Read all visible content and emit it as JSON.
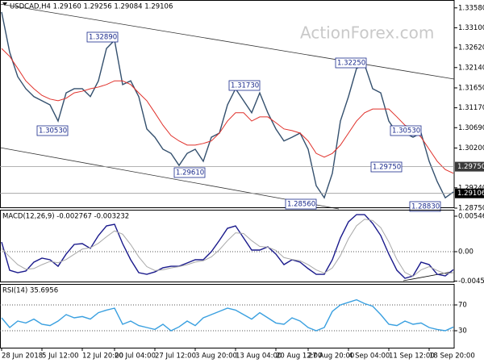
{
  "chart_data": [
    {
      "type": "line",
      "title": "USDCAD,H4 1.29160 1.29256 1.29084 1.29106",
      "watermark": "ActionForex.com",
      "series": [
        {
          "color": "#34506e",
          "values": [
            1.3348,
            1.3251,
            1.3192,
            1.3163,
            1.3144,
            1.3134,
            1.3124,
            1.3085,
            1.3153,
            1.3163,
            1.3163,
            1.3144,
            1.3182,
            1.326,
            1.328,
            1.3173,
            1.3182,
            1.3144,
            1.3066,
            1.3046,
            1.3017,
            1.3007,
            1.2978,
            1.3007,
            1.3017,
            1.2988,
            1.3046,
            1.3056,
            1.3124,
            1.3163,
            1.3134,
            1.3105,
            1.3153,
            1.3105,
            1.3066,
            1.3037,
            1.3046,
            1.3056,
            1.3017,
            1.2929,
            1.29,
            1.2959,
            1.3085,
            1.3144,
            1.3212,
            1.3221,
            1.3163,
            1.3153,
            1.3085,
            1.3056,
            1.3056,
            1.3046,
            1.3056,
            1.2988,
            1.2939,
            1.29,
            1.2914
          ]
        },
        {
          "color": "#e0302a",
          "values": [
            1.326,
            1.3241,
            1.3212,
            1.3182,
            1.3163,
            1.3147,
            1.3138,
            1.3134,
            1.314,
            1.3153,
            1.3157,
            1.3163,
            1.3167,
            1.3173,
            1.3182,
            1.3182,
            1.3173,
            1.3153,
            1.3134,
            1.3105,
            1.3075,
            1.305,
            1.3037,
            1.3027,
            1.3027,
            1.3031,
            1.3037,
            1.3056,
            1.3085,
            1.3105,
            1.3105,
            1.3085,
            1.3095,
            1.3095,
            1.3081,
            1.3066,
            1.3062,
            1.3056,
            1.3037,
            1.3007,
            1.2998,
            1.3007,
            1.3027,
            1.3056,
            1.3085,
            1.3105,
            1.3114,
            1.3114,
            1.3114,
            1.3095,
            1.3075,
            1.3066,
            1.3046,
            1.3017,
            1.2988,
            1.2968,
            1.2959
          ]
        }
      ],
      "ylim": [
        1.2875,
        1.3377
      ],
      "yticks": [
        {
          "value": 1.3358,
          "label": "1.33580"
        },
        {
          "value": 1.331,
          "label": "1.33100"
        },
        {
          "value": 1.3262,
          "label": "1.32620"
        },
        {
          "value": 1.3214,
          "label": "1.32140"
        },
        {
          "value": 1.3165,
          "label": "1.31650"
        },
        {
          "value": 1.3117,
          "label": "1.31170"
        },
        {
          "value": 1.3069,
          "label": "1.30690"
        },
        {
          "value": 1.302,
          "label": "1.30200"
        },
        {
          "value": 1.2924,
          "label": "1.29240"
        },
        {
          "value": 1.2875,
          "label": "1.28750"
        }
      ],
      "price_lines": [
        {
          "value": 1.2975,
          "label": "1.29750",
          "color": "#3a3a3a"
        },
        {
          "value": 1.29106,
          "label": "1.29106",
          "color": "#000000"
        }
      ],
      "annotations": [
        "1.32890",
        "1.31730",
        "1.30530",
        "1.29610",
        "1.28560",
        "1.32250",
        "1.30530",
        "1.29750",
        "1.28830"
      ]
    },
    {
      "type": "line",
      "title": "MACD(12,26,9) -0.002767 -0.003232",
      "series": [
        {
          "color": "#1a1a8c",
          "values": [
            0.00149,
            -0.00286,
            -0.00323,
            -0.00298,
            -0.00161,
            -0.00099,
            -0.00124,
            -0.00224,
            -0.00037,
            0.00112,
            0.00124,
            0.0005,
            0.00248,
            0.00397,
            0.00422,
            0.00124,
            -0.00124,
            -0.00323,
            -0.00348,
            -0.00311,
            -0.00248,
            -0.00224,
            -0.00224,
            -0.00174,
            -0.00124,
            -0.00124,
            0,
            0.00174,
            0.0036,
            0.00397,
            0.00211,
            0.00025,
            0.00025,
            0.00075,
            -0.00037,
            -0.00199,
            -0.00124,
            -0.00161,
            -0.00261,
            -0.00348,
            -0.00348,
            -0.00124,
            0.00211,
            0.0046,
            0.00571,
            0.00571,
            0.00435,
            0.00248,
            -0.00037,
            -0.00286,
            -0.0041,
            -0.00373,
            -0.00161,
            -0.00199,
            -0.00348,
            -0.00373,
            -0.00277
          ]
        },
        {
          "color": "#a8a8a8",
          "values": [
            0.0005,
            -0.0008,
            -0.002,
            -0.0027,
            -0.0026,
            -0.002,
            -0.0015,
            -0.0017,
            -0.0012,
            -0.0004,
            0.0004,
            0.0006,
            0.0013,
            0.0023,
            0.0032,
            0.0027,
            0.0011,
            -0.0008,
            -0.0023,
            -0.0029,
            -0.0028,
            -0.0025,
            -0.0023,
            -0.002,
            -0.0016,
            -0.0014,
            -0.0008,
            0.0003,
            0.0017,
            0.0029,
            0.0028,
            0.0017,
            0.0008,
            0.0007,
            0.0002,
            -0.0009,
            -0.0012,
            -0.0014,
            -0.002,
            -0.0028,
            -0.0033,
            -0.0025,
            -0.0006,
            0.002,
            0.004,
            0.005,
            0.0048,
            0.0037,
            0.0015,
            -0.0012,
            -0.0032,
            -0.0038,
            -0.0028,
            -0.0023,
            -0.0029,
            -0.0034,
            -0.00323
          ]
        }
      ],
      "ylim": [
        -0.00472,
        0.00646
      ],
      "yticks": [
        0.005465,
        {
          "value": 0,
          "label": "0.00"
        },
        -0.004527
      ],
      "levels": [
        0
      ]
    },
    {
      "type": "line",
      "title": "RSI(14) 35.6956",
      "categories": [
        "28 Jun 2018",
        null,
        null,
        null,
        null,
        "5 Jul 12:00",
        null,
        null,
        null,
        null,
        "12 Jul 20:00",
        null,
        null,
        null,
        "20 Jul 04:00",
        null,
        null,
        null,
        null,
        "27 Jul 12:00",
        null,
        null,
        null,
        null,
        "3 Aug 20:00",
        null,
        null,
        null,
        null,
        "13 Aug 04:00",
        null,
        null,
        null,
        null,
        "20 Aug 12:00",
        null,
        null,
        null,
        "27 Aug 20:00",
        null,
        null,
        null,
        null,
        "4 Sep 04:00",
        null,
        null,
        null,
        null,
        "11 Sep 12:00",
        null,
        null,
        null,
        null,
        "18 Sep 20:00",
        null,
        null,
        null
      ],
      "series": [
        {
          "color": "#3aa0e0",
          "values": [
            50,
            35,
            45,
            42,
            48,
            40,
            38,
            45,
            55,
            50,
            52,
            48,
            58,
            62,
            65,
            40,
            45,
            38,
            35,
            32,
            40,
            30,
            36,
            45,
            38,
            50,
            55,
            60,
            65,
            62,
            55,
            48,
            58,
            50,
            42,
            40,
            50,
            45,
            35,
            30,
            35,
            60,
            70,
            74,
            78,
            72,
            68,
            55,
            40,
            38,
            45,
            40,
            42,
            35,
            32,
            30,
            35.6956
          ]
        }
      ],
      "ylim": [
        2.5,
        102.5
      ],
      "yticks": [
        70,
        30
      ],
      "levels": [
        70,
        30
      ]
    }
  ]
}
